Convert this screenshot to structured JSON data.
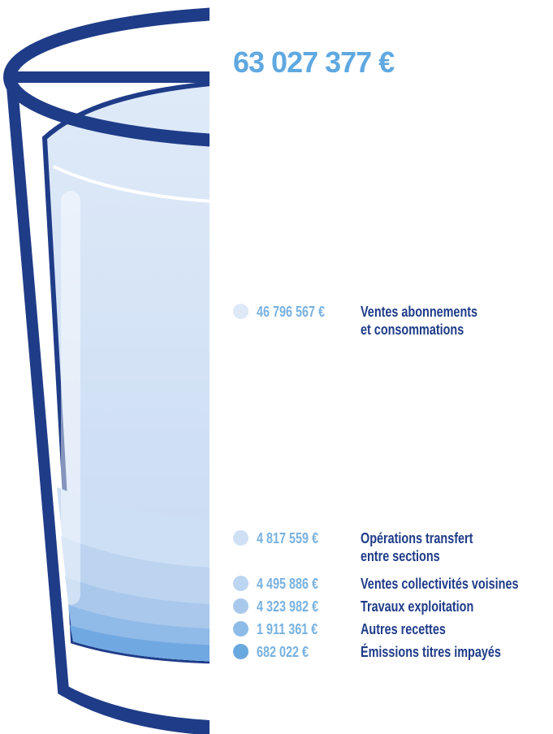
{
  "total": "63 027 377 €",
  "items": [
    {
      "amount": "46 796 567 €",
      "label": [
        "Ventes abonnements",
        "et consommations"
      ]
    },
    {
      "amount": "4 817 559 €",
      "label": [
        "Opérations transfert",
        "entre sections"
      ]
    },
    {
      "amount": "4 495 886 €",
      "label": [
        "Ventes collectivités voisines"
      ]
    },
    {
      "amount": "4 323 982 €",
      "label": [
        "Travaux exploitation"
      ]
    },
    {
      "amount": "1 911 361 €",
      "label": [
        "Autres recettes"
      ]
    },
    {
      "amount": "682 022 €",
      "label": [
        "Émissions titres impayés"
      ]
    }
  ]
}
